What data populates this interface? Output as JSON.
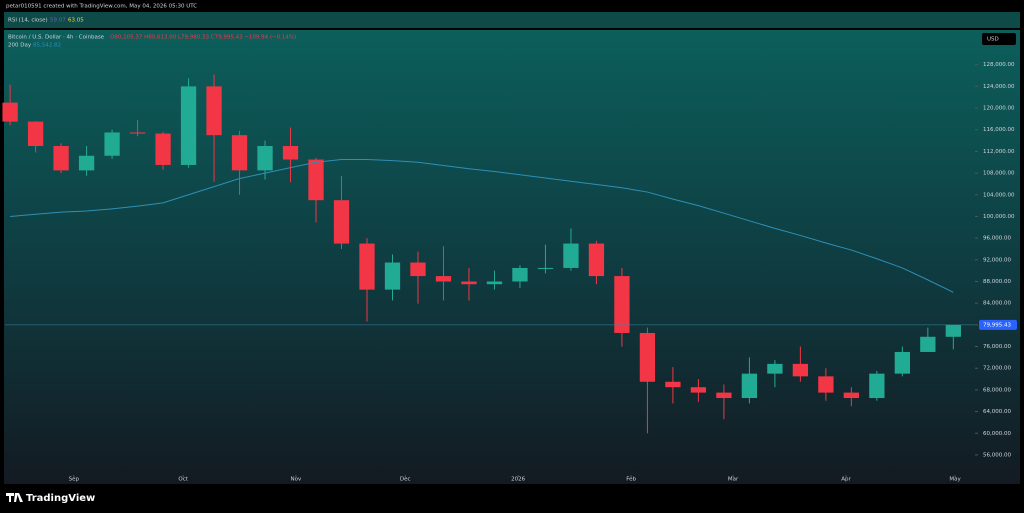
{
  "chart_data": {
    "type": "candlestick",
    "header": "petar010591 created with TradingView.com, May 04, 2026 05:30 UTC",
    "rsi": {
      "label": "RSI (14, close)",
      "value_a": "59.07",
      "value_b": "63.05"
    },
    "symbol": "Bitcoin / U.S. Dollar · 4h · Coinbase",
    "ohlc_text": "O80,105.37 H80,613.00 L79,980.33 C79,995.43 −109.94 (−0.14%)",
    "overlay_text": "85,542.82",
    "currency": "USD",
    "brand": "TradingView",
    "categories": [
      null,
      null,
      null,
      null,
      null,
      null,
      null,
      null,
      null,
      null,
      null,
      null,
      null,
      null,
      null,
      null,
      null,
      null,
      null,
      null,
      null,
      null,
      null,
      null,
      null,
      null,
      null,
      null,
      null,
      null,
      null,
      null,
      null,
      null,
      null,
      null,
      null,
      null
    ],
    "open": [
      121000,
      117500,
      113000,
      108500,
      111200,
      115500,
      115300,
      109500,
      124000,
      115000,
      108500,
      113000,
      110500,
      103000,
      95000,
      86500,
      91500,
      89000,
      88000,
      87500,
      88000,
      90500,
      90500,
      95000,
      89000,
      78500,
      69500,
      68500,
      67500,
      66500,
      71000,
      72800,
      70500,
      67500,
      66500,
      71000,
      75000,
      77800
    ],
    "high": [
      124300,
      117600,
      113500,
      113000,
      116000,
      117800,
      115600,
      125500,
      126200,
      115800,
      114000,
      116400,
      110800,
      107500,
      96000,
      93000,
      93500,
      94500,
      90500,
      90000,
      91000,
      94800,
      97800,
      95500,
      90500,
      79500,
      72200,
      70000,
      69000,
      74000,
      73500,
      76000,
      72000,
      68500,
      71500,
      76000,
      79500,
      79800
    ],
    "low": [
      116800,
      111800,
      108000,
      107500,
      110600,
      114800,
      108600,
      109000,
      106400,
      104000,
      106800,
      106300,
      98900,
      94000,
      80600,
      84500,
      83900,
      84500,
      84500,
      86500,
      86800,
      89500,
      90000,
      87500,
      76000,
      60000,
      65500,
      65800,
      62600,
      65500,
      68500,
      69500,
      66000,
      65000,
      66000,
      70500,
      75000,
      75500
    ],
    "close": [
      117500,
      113000,
      108500,
      111200,
      115500,
      115300,
      109500,
      124000,
      115000,
      108500,
      113000,
      110500,
      103000,
      95000,
      86500,
      91500,
      89000,
      88000,
      87500,
      88000,
      90500,
      90500,
      95000,
      89000,
      78500,
      69500,
      68500,
      67500,
      66500,
      71000,
      72800,
      70500,
      67500,
      66500,
      71000,
      75000,
      77800,
      79995.43
    ],
    "up_color": "#22ab94",
    "down_color": "#f23645",
    "overlay": {
      "name": "200 Day",
      "color": "#2e8fb5",
      "values": [
        100000,
        100400,
        100800,
        101000,
        101400,
        101900,
        102500,
        104000,
        105500,
        107000,
        108000,
        109000,
        110000,
        110500,
        110500,
        110300,
        110000,
        109400,
        108800,
        108300,
        107700,
        107100,
        106500,
        105900,
        105300,
        104500,
        103200,
        102000,
        100600,
        99200,
        97800,
        96500,
        95100,
        93800,
        92200,
        90500,
        88300,
        86000
      ]
    },
    "last_price": {
      "value": 79995.43,
      "label": "79,995.43"
    },
    "xlim": [
      -0.2,
      37.85
    ],
    "xticks": [
      {
        "value": 2.5,
        "label": "Sep"
      },
      {
        "value": 6.79,
        "label": "Oct"
      },
      {
        "value": 11.21,
        "label": "Nov"
      },
      {
        "value": 15.5,
        "label": "Dec"
      },
      {
        "value": 19.93,
        "label": "2026"
      },
      {
        "value": 24.36,
        "label": "Feb"
      },
      {
        "value": 28.36,
        "label": "Mar"
      },
      {
        "value": 32.79,
        "label": "Apr"
      },
      {
        "value": 37.07,
        "label": "May"
      }
    ],
    "ylim": [
      52300,
      134400
    ],
    "yticks": [
      {
        "value": 56000,
        "label": "56,000.00"
      },
      {
        "value": 60000,
        "label": "60,000.00"
      },
      {
        "value": 64000,
        "label": "64,000.00"
      },
      {
        "value": 68000,
        "label": "68,000.00"
      },
      {
        "value": 72000,
        "label": "72,000.00"
      },
      {
        "value": 76000,
        "label": "76,000.00"
      },
      {
        "value": 80000,
        "label": "80,000.00"
      },
      {
        "value": 84000,
        "label": "84,000.00"
      },
      {
        "value": 88000,
        "label": "88,000.00"
      },
      {
        "value": 92000,
        "label": "92,000.00"
      },
      {
        "value": 96000,
        "label": "96,000.00"
      },
      {
        "value": 100000,
        "label": "100,000.00"
      },
      {
        "value": 104000,
        "label": "104,000.00"
      },
      {
        "value": 108000,
        "label": "108,000.00"
      },
      {
        "value": 112000,
        "label": "112,000.00"
      },
      {
        "value": 116000,
        "label": "116,000.00"
      },
      {
        "value": 120000,
        "label": "120,000.00"
      },
      {
        "value": 124000,
        "label": "124,000.00"
      },
      {
        "value": 128000,
        "label": "128,000.00"
      }
    ]
  }
}
